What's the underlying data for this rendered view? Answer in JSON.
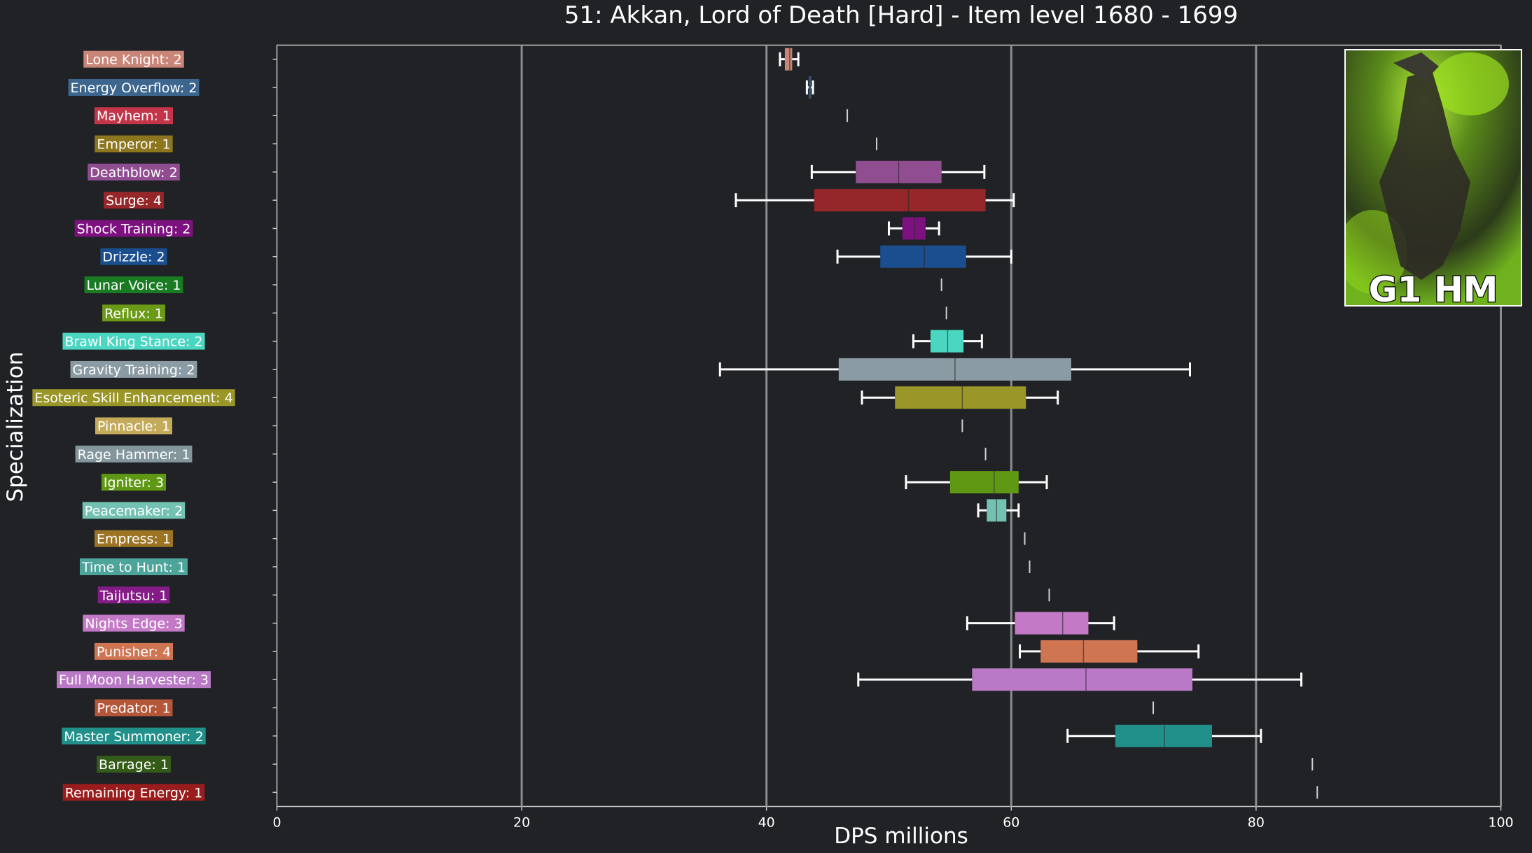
{
  "chart_data": {
    "type": "box",
    "title": "51: Akkan, Lord of Death [Hard] - Item level 1680 - 1699",
    "xlabel": "DPS millions",
    "ylabel": "Specialization",
    "xlim": [
      0,
      100
    ],
    "xticks": [
      0,
      20,
      40,
      60,
      80,
      100
    ],
    "grid": "vertical lines at 20, 40, 60, 80, 100",
    "badge": {
      "text": "G1 HM"
    },
    "categories": [
      {
        "label": "Lone Knight: 2",
        "color": "#c98577",
        "whislo": 41.1,
        "q1": 41.5,
        "med": 41.9,
        "q3": 42.1,
        "whishi": 42.6
      },
      {
        "label": "Energy Overflow: 2",
        "color": "#3d668f",
        "whislo": 43.3,
        "q1": 43.45,
        "med": 43.55,
        "q3": 43.65,
        "whishi": 43.8
      },
      {
        "label": "Mayhem: 1",
        "color": "#c4354a",
        "whislo": 46.6,
        "q1": 46.6,
        "med": 46.6,
        "q3": 46.6,
        "whishi": 46.6
      },
      {
        "label": "Emperor: 1",
        "color": "#8c761e",
        "whislo": 49.0,
        "q1": 49.0,
        "med": 49.0,
        "q3": 49.0,
        "whishi": 49.0
      },
      {
        "label": "Deathblow: 2",
        "color": "#904e91",
        "whislo": 43.7,
        "q1": 47.3,
        "med": 50.8,
        "q3": 54.3,
        "whishi": 57.8
      },
      {
        "label": "Surge: 4",
        "color": "#952629",
        "whislo": 37.5,
        "q1": 43.9,
        "med": 51.6,
        "q3": 57.9,
        "whishi": 60.2
      },
      {
        "label": "Shock Training: 2",
        "color": "#7d1180",
        "whislo": 50.0,
        "q1": 51.1,
        "med": 52.1,
        "q3": 53.0,
        "whishi": 54.1
      },
      {
        "label": "Drizzle: 2",
        "color": "#1b4e8e",
        "whislo": 45.8,
        "q1": 49.3,
        "med": 52.9,
        "q3": 56.3,
        "whishi": 60.0
      },
      {
        "label": "Lunar Voice: 1",
        "color": "#1a7c22",
        "whislo": 54.3,
        "q1": 54.3,
        "med": 54.3,
        "q3": 54.3,
        "whishi": 54.3
      },
      {
        "label": "Reflux: 1",
        "color": "#6b9b16",
        "whislo": 54.7,
        "q1": 54.7,
        "med": 54.7,
        "q3": 54.7,
        "whishi": 54.7
      },
      {
        "label": "Brawl King Stance: 2",
        "color": "#4bd6c2",
        "whislo": 52.0,
        "q1": 53.4,
        "med": 54.8,
        "q3": 56.1,
        "whishi": 57.6
      },
      {
        "label": "Gravity Training: 2",
        "color": "#8a9ba3",
        "whislo": 36.2,
        "q1": 45.9,
        "med": 55.4,
        "q3": 64.9,
        "whishi": 74.6
      },
      {
        "label": "Esoteric Skill Enhancement: 4",
        "color": "#9a9628",
        "whislo": 47.8,
        "q1": 50.5,
        "med": 56.0,
        "q3": 61.2,
        "whishi": 63.8
      },
      {
        "label": "Pinnacle: 1",
        "color": "#c4ab5c",
        "whislo": 56.0,
        "q1": 56.0,
        "med": 56.0,
        "q3": 56.0,
        "whishi": 56.0
      },
      {
        "label": "Rage Hammer: 1",
        "color": "#82969b",
        "whislo": 57.9,
        "q1": 57.9,
        "med": 57.9,
        "q3": 57.9,
        "whishi": 57.9
      },
      {
        "label": "Igniter: 3",
        "color": "#5f9813",
        "whislo": 51.4,
        "q1": 55.0,
        "med": 58.6,
        "q3": 60.6,
        "whishi": 62.9
      },
      {
        "label": "Peacemaker: 2",
        "color": "#73c1b2",
        "whislo": 57.3,
        "q1": 58.0,
        "med": 58.8,
        "q3": 59.6,
        "whishi": 60.6
      },
      {
        "label": "Empress: 1",
        "color": "#9c7424",
        "whislo": 61.1,
        "q1": 61.1,
        "med": 61.1,
        "q3": 61.1,
        "whishi": 61.1
      },
      {
        "label": "Time to Hunt: 1",
        "color": "#4da49a",
        "whislo": 61.5,
        "q1": 61.5,
        "med": 61.5,
        "q3": 61.5,
        "whishi": 61.5
      },
      {
        "label": "Taijutsu: 1",
        "color": "#851b86",
        "whislo": 63.1,
        "q1": 63.1,
        "med": 63.1,
        "q3": 63.1,
        "whishi": 63.1
      },
      {
        "label": "Nights Edge: 3",
        "color": "#c479c6",
        "whislo": 56.4,
        "q1": 60.3,
        "med": 64.2,
        "q3": 66.3,
        "whishi": 68.4
      },
      {
        "label": "Punisher: 4",
        "color": "#cf7552",
        "whislo": 60.7,
        "q1": 62.4,
        "med": 65.9,
        "q3": 70.3,
        "whishi": 75.3
      },
      {
        "label": "Full Moon Harvester: 3",
        "color": "#ba79c6",
        "whislo": 47.5,
        "q1": 56.8,
        "med": 66.1,
        "q3": 74.8,
        "whishi": 83.7
      },
      {
        "label": "Predator: 1",
        "color": "#b45638",
        "whislo": 71.6,
        "q1": 71.6,
        "med": 71.6,
        "q3": 71.6,
        "whishi": 71.6
      },
      {
        "label": "Master Summoner: 2",
        "color": "#21908a",
        "whislo": 64.6,
        "q1": 68.5,
        "med": 72.5,
        "q3": 76.4,
        "whishi": 80.4
      },
      {
        "label": "Barrage: 1",
        "color": "#345c18",
        "whislo": 84.6,
        "q1": 84.6,
        "med": 84.6,
        "q3": 84.6,
        "whishi": 84.6
      },
      {
        "label": "Remaining Energy: 1",
        "color": "#9a1d1d",
        "whislo": 85.0,
        "q1": 85.0,
        "med": 85.0,
        "q3": 85.0,
        "whishi": 85.0
      }
    ]
  }
}
